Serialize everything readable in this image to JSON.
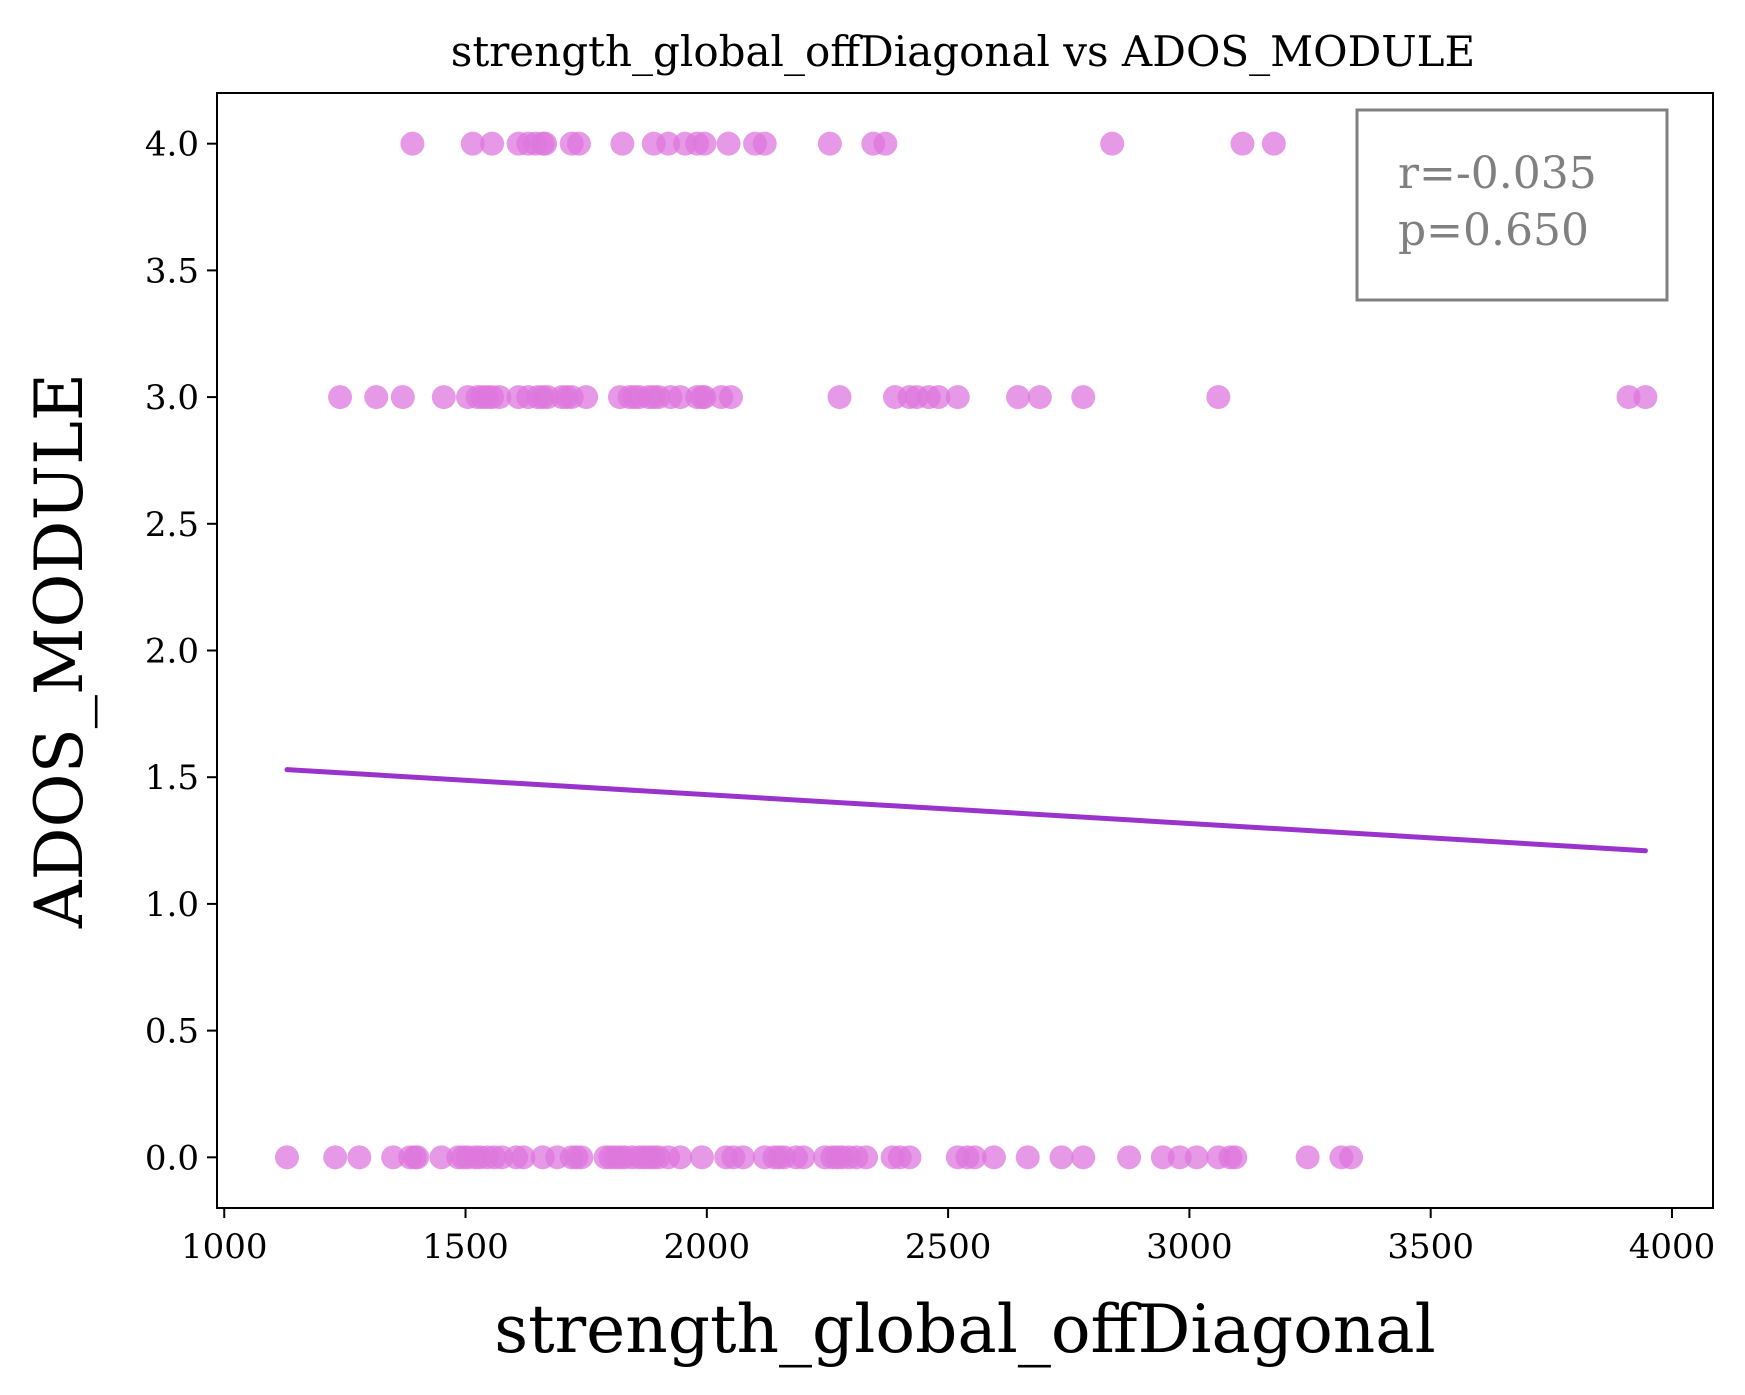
{
  "chart_data": {
    "type": "scatter",
    "title": "strength_global_offDiagonal vs ADOS_MODULE",
    "xlabel": "strength_global_offDiagonal",
    "ylabel": "ADOS_MODULE",
    "xlim": [
      985,
      4085
    ],
    "ylim": [
      -0.2,
      4.2
    ],
    "xticks": [
      1000,
      1500,
      2000,
      2500,
      3000,
      3500,
      4000
    ],
    "yticks": [
      0.0,
      0.5,
      1.0,
      1.5,
      2.0,
      2.5,
      3.0,
      3.5,
      4.0
    ],
    "grid": false,
    "colors": {
      "points": "#dd77dd",
      "fit": "#9933cc",
      "stats_box": "#808080"
    },
    "stats": {
      "r_text": "r=-0.035",
      "p_text": "p=0.650"
    },
    "stats_placement": "top-right",
    "fit_line": {
      "x": [
        1130,
        3945
      ],
      "y": [
        1.53,
        1.21
      ]
    },
    "series": [
      {
        "y": 4.0,
        "x": [
          1390,
          1515,
          1555,
          1610,
          1630,
          1645,
          1660,
          1665,
          1720,
          1735,
          1825,
          1890,
          1920,
          1955,
          1980,
          1995,
          2045,
          2100,
          2120,
          2255,
          2345,
          2370,
          2840,
          3110,
          3175
        ]
      },
      {
        "y": 3.0,
        "x": [
          1240,
          1315,
          1370,
          1455,
          1505,
          1525,
          1535,
          1545,
          1555,
          1570,
          1610,
          1630,
          1650,
          1660,
          1670,
          1700,
          1710,
          1720,
          1750,
          1820,
          1840,
          1850,
          1860,
          1880,
          1890,
          1900,
          1925,
          1945,
          1980,
          1990,
          1995,
          2030,
          2050,
          2275,
          2390,
          2420,
          2435,
          2460,
          2480,
          2520,
          2645,
          2690,
          2780,
          3060,
          3910,
          3945
        ]
      },
      {
        "y": 0.0,
        "x": [
          1130,
          1230,
          1280,
          1350,
          1385,
          1395,
          1400,
          1450,
          1485,
          1495,
          1505,
          1520,
          1530,
          1545,
          1560,
          1575,
          1605,
          1620,
          1660,
          1690,
          1720,
          1730,
          1740,
          1790,
          1800,
          1810,
          1820,
          1830,
          1845,
          1860,
          1870,
          1880,
          1890,
          1900,
          1920,
          1945,
          1990,
          2040,
          2055,
          2075,
          2120,
          2140,
          2150,
          2160,
          2185,
          2200,
          2245,
          2260,
          2270,
          2280,
          2295,
          2310,
          2330,
          2385,
          2400,
          2420,
          2520,
          2540,
          2555,
          2595,
          2665,
          2735,
          2780,
          2875,
          2945,
          2980,
          3015,
          3060,
          3085,
          3095,
          3245,
          3315,
          3335
        ]
      }
    ]
  }
}
